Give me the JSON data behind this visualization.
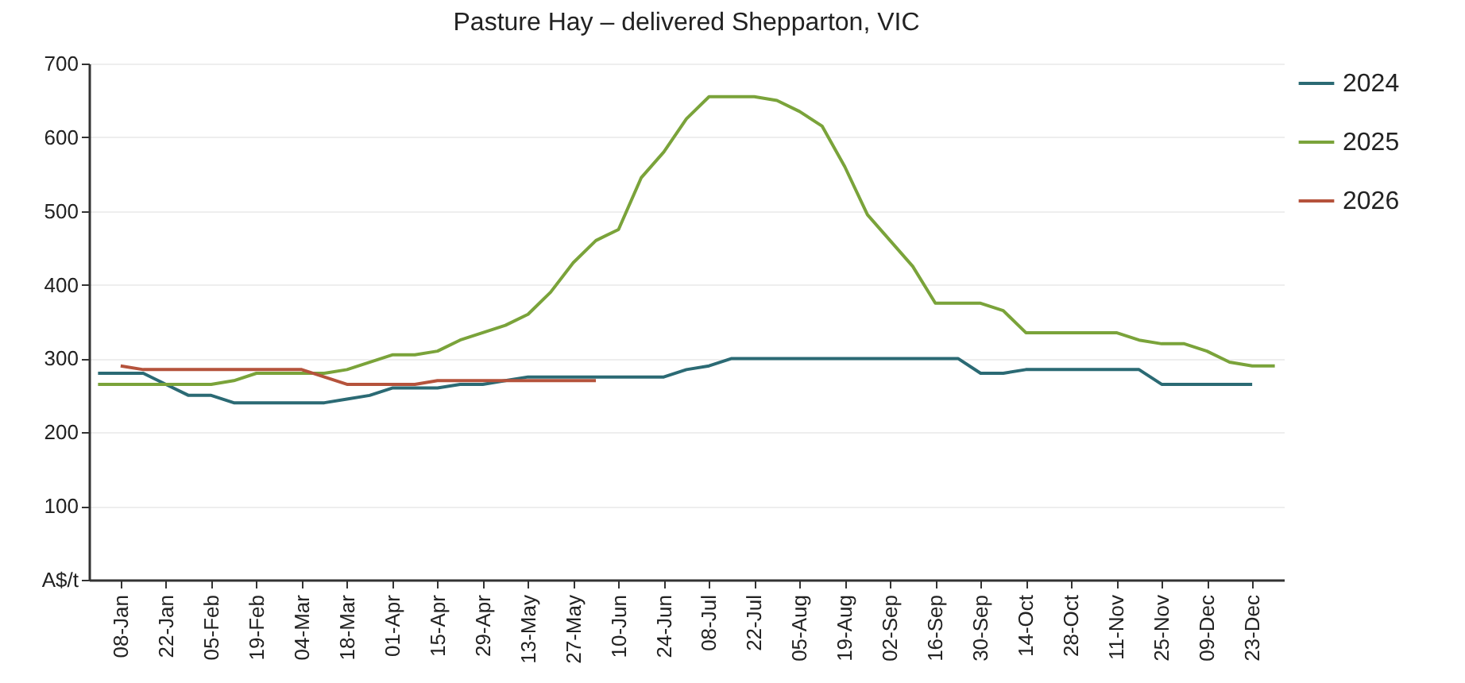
{
  "chart_data": {
    "type": "line",
    "title": "Pasture Hay – delivered Shepparton, VIC",
    "categories": [
      null,
      "08-Jan",
      null,
      "22-Jan",
      null,
      "05-Feb",
      null,
      "19-Feb",
      null,
      "04-Mar",
      null,
      "18-Mar",
      null,
      "01-Apr",
      null,
      "15-Apr",
      null,
      "29-Apr",
      null,
      "13-May",
      null,
      "27-May",
      null,
      "10-Jun",
      null,
      "24-Jun",
      null,
      "08-Jul",
      null,
      "22-Jul",
      null,
      "05-Aug",
      null,
      "19-Aug",
      null,
      "02-Sep",
      null,
      "16-Sep",
      null,
      "30-Sep",
      null,
      "14-Oct",
      null,
      "28-Oct",
      null,
      "11-Nov",
      null,
      "25-Nov",
      null,
      "09-Dec",
      null,
      "23-Dec",
      null
    ],
    "series": [
      {
        "name": "2024",
        "color": "#2b6a74",
        "values": [
          280,
          280,
          280,
          265,
          250,
          250,
          240,
          240,
          240,
          240,
          240,
          245,
          250,
          260,
          260,
          260,
          265,
          265,
          270,
          275,
          275,
          275,
          275,
          275,
          275,
          275,
          285,
          290,
          300,
          300,
          300,
          300,
          300,
          300,
          300,
          300,
          300,
          300,
          300,
          280,
          280,
          285,
          285,
          285,
          285,
          285,
          285,
          265,
          265,
          265,
          265,
          265,
          null
        ]
      },
      {
        "name": "2025",
        "color": "#7aa33a",
        "values": [
          265,
          265,
          265,
          265,
          265,
          265,
          270,
          280,
          280,
          280,
          280,
          285,
          295,
          305,
          305,
          310,
          325,
          335,
          345,
          360,
          390,
          430,
          460,
          475,
          545,
          580,
          625,
          655,
          655,
          655,
          650,
          635,
          615,
          560,
          495,
          460,
          425,
          375,
          375,
          375,
          365,
          335,
          335,
          335,
          335,
          335,
          325,
          320,
          320,
          310,
          295,
          290,
          290
        ]
      },
      {
        "name": "2026",
        "color": "#b5533c",
        "values": [
          null,
          290,
          285,
          285,
          285,
          285,
          285,
          285,
          285,
          285,
          275,
          265,
          265,
          265,
          265,
          270,
          270,
          270,
          270,
          270,
          270,
          270,
          270,
          null,
          null,
          null,
          null,
          null,
          null,
          null,
          null,
          null,
          null,
          null,
          null,
          null,
          null,
          null,
          null,
          null,
          null,
          null,
          null,
          null,
          null,
          null,
          null,
          null,
          null,
          null,
          null,
          null,
          null
        ]
      }
    ],
    "ylim": [
      0,
      700
    ],
    "yticks": [
      {
        "value": 0,
        "label": "A$/t"
      },
      100,
      200,
      300,
      400,
      500,
      600,
      700
    ],
    "grid": "y",
    "legend": "right",
    "marker": "none",
    "line_style": "solid"
  }
}
